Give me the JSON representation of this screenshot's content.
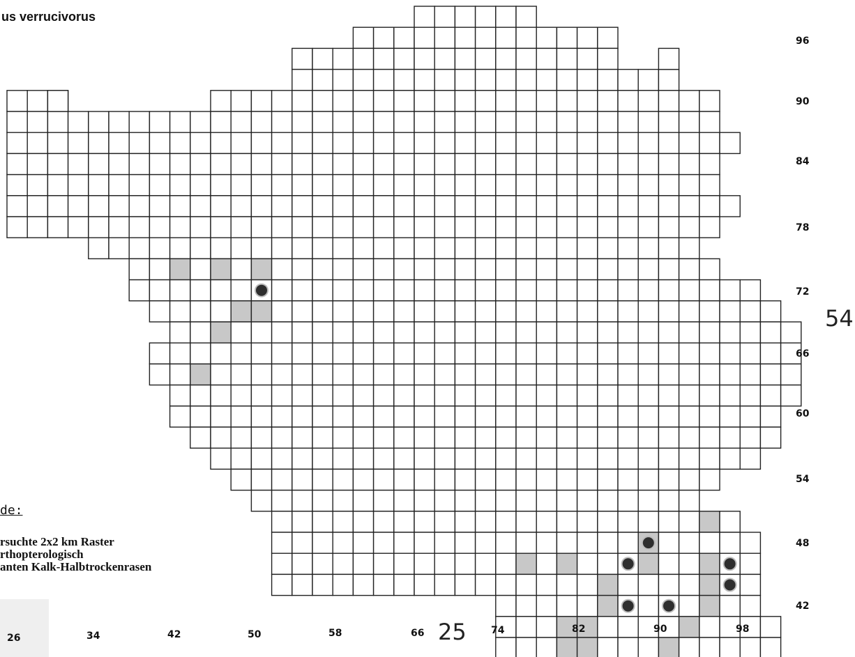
{
  "species_title": "us verrucivorus",
  "legend": {
    "title": "de:",
    "lines": [
      "rsuchte 2x2 km Raster",
      "rthopterologisch",
      "anten Kalk-Halbtrockenrasen"
    ]
  },
  "x_labels": [
    "26",
    "34",
    "42",
    "50",
    "58",
    "66",
    "74",
    "82",
    "90",
    "98"
  ],
  "y_labels": [
    "96",
    "90",
    "84",
    "78",
    "72",
    "66",
    "60",
    "54",
    "48",
    "42"
  ],
  "grid_x_label": "25",
  "grid_y_label": "54",
  "colors": {
    "grid": "#222222",
    "shaded": "#c8c8c8",
    "dot": "#2e2e2e",
    "dot_ring": "#bdbdbd"
  }
}
